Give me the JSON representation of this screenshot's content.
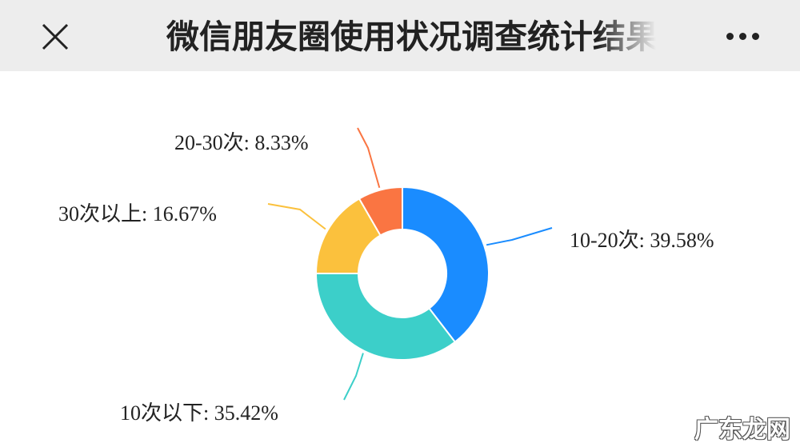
{
  "header": {
    "title": "微信朋友圈使用状况调查统计结果",
    "close_icon": "close-icon",
    "more_icon": "more-icon"
  },
  "chart_data": {
    "type": "pie",
    "donut": true,
    "slices": [
      {
        "label": "10-20次",
        "value": 39.58,
        "text": "10-20次: 39.58%",
        "color": "#1a8cff"
      },
      {
        "label": "10次以下",
        "value": 35.42,
        "text": "10次以下: 35.42%",
        "color": "#3ccfc9"
      },
      {
        "label": "30次以上",
        "value": 16.67,
        "text": "30次以上: 16.67%",
        "color": "#fbc13d"
      },
      {
        "label": "20-30次",
        "value": 8.33,
        "text": "20-30次: 8.33%",
        "color": "#fa7542"
      }
    ]
  },
  "watermark": "广东龙网"
}
